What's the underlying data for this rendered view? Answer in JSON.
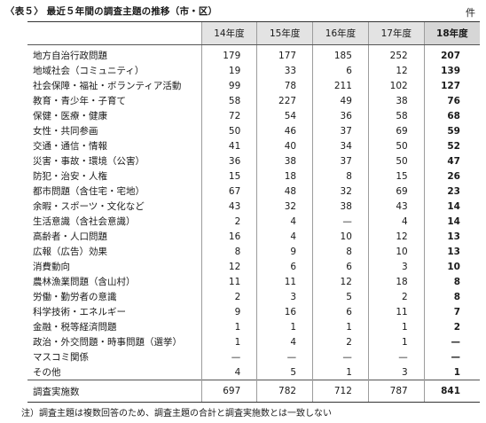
{
  "title": "〈表５〉 最近５年間の調査主題の推移（市・区）",
  "unit": "件",
  "columns": [
    "14年度",
    "15年度",
    "16年度",
    "17年度",
    "18年度"
  ],
  "rows": [
    {
      "label": "地方自治行政問題",
      "values": [
        "179",
        "177",
        "185",
        "252",
        "207"
      ]
    },
    {
      "label": "地域社会（コミュニティ）",
      "values": [
        "19",
        "33",
        "6",
        "12",
        "139"
      ]
    },
    {
      "label": "社会保障・福祉・ボランティア活動",
      "values": [
        "99",
        "78",
        "211",
        "102",
        "127"
      ]
    },
    {
      "label": "教育・青少年・子育て",
      "values": [
        "58",
        "227",
        "49",
        "38",
        "76"
      ]
    },
    {
      "label": "保健・医療・健康",
      "values": [
        "72",
        "54",
        "36",
        "58",
        "68"
      ]
    },
    {
      "label": "女性・共同参画",
      "values": [
        "50",
        "46",
        "37",
        "69",
        "59"
      ]
    },
    {
      "label": "交通・通信・情報",
      "values": [
        "41",
        "40",
        "34",
        "50",
        "52"
      ]
    },
    {
      "label": "災害・事故・環境（公害）",
      "values": [
        "36",
        "38",
        "37",
        "50",
        "47"
      ]
    },
    {
      "label": "防犯・治安・人権",
      "values": [
        "15",
        "18",
        "8",
        "15",
        "26"
      ]
    },
    {
      "label": "都市問題（含住宅・宅地）",
      "values": [
        "67",
        "48",
        "32",
        "69",
        "23"
      ]
    },
    {
      "label": "余暇・スポーツ・文化など",
      "values": [
        "43",
        "32",
        "38",
        "43",
        "14"
      ]
    },
    {
      "label": "生活意識（含社会意識）",
      "values": [
        "2",
        "4",
        "—",
        "4",
        "14"
      ]
    },
    {
      "label": "高齢者・人口問題",
      "values": [
        "16",
        "4",
        "10",
        "12",
        "13"
      ]
    },
    {
      "label": "広報（広告）効果",
      "values": [
        "8",
        "9",
        "8",
        "10",
        "13"
      ]
    },
    {
      "label": "消費動向",
      "values": [
        "12",
        "6",
        "6",
        "3",
        "10"
      ]
    },
    {
      "label": "農林漁業問題（含山村）",
      "values": [
        "11",
        "11",
        "12",
        "18",
        "8"
      ]
    },
    {
      "label": "労働・勤労者の意識",
      "values": [
        "2",
        "3",
        "5",
        "2",
        "8"
      ]
    },
    {
      "label": "科学技術・エネルギー",
      "values": [
        "9",
        "16",
        "6",
        "11",
        "7"
      ]
    },
    {
      "label": "金融・税等経済問題",
      "values": [
        "1",
        "1",
        "1",
        "1",
        "2"
      ]
    },
    {
      "label": "政治・外交問題・時事問題（選挙）",
      "values": [
        "1",
        "4",
        "2",
        "1",
        "—"
      ]
    },
    {
      "label": "マスコミ関係",
      "values": [
        "—",
        "—",
        "—",
        "—",
        "—"
      ]
    },
    {
      "label": "その他",
      "values": [
        "4",
        "5",
        "1",
        "3",
        "1"
      ]
    }
  ],
  "total": {
    "label": "調査実施数",
    "values": [
      "697",
      "782",
      "712",
      "787",
      "841"
    ]
  },
  "note": "注）調査主題は複数回答のため、調査主題の合計と調査実施数とは一致しない"
}
